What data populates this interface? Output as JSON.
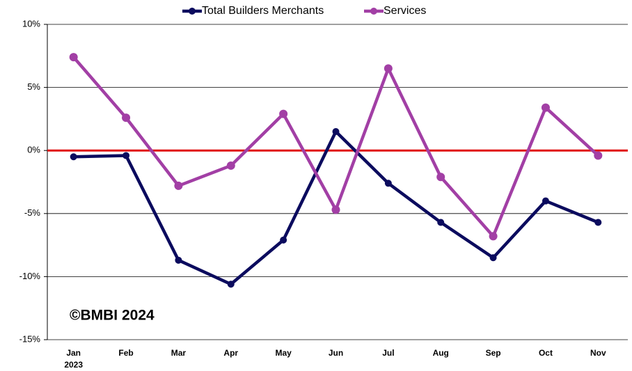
{
  "chart_data": {
    "type": "line",
    "categories": [
      "Jan",
      "Feb",
      "Mar",
      "Apr",
      "May",
      "Jun",
      "Jul",
      "Aug",
      "Sep",
      "Oct",
      "Nov"
    ],
    "year": "2023",
    "series": [
      {
        "name": "Total Builders Merchants",
        "color": "#0b0b5e",
        "values": [
          -0.5,
          -0.4,
          -8.7,
          -10.6,
          -7.1,
          1.5,
          -2.6,
          -5.7,
          -8.5,
          -4.0,
          -5.7
        ]
      },
      {
        "name": "Services",
        "color": "#a23fa5",
        "values": [
          7.4,
          2.6,
          -2.8,
          -1.2,
          2.9,
          -4.7,
          6.5,
          -2.1,
          -6.8,
          3.4,
          -0.4
        ]
      }
    ],
    "ylim": [
      -15,
      10
    ],
    "yticks": [
      {
        "value": -15,
        "label": "-15%"
      },
      {
        "value": -10,
        "label": "-10%"
      },
      {
        "value": -5,
        "label": "-5%"
      },
      {
        "value": 0,
        "label": "0%"
      },
      {
        "value": 5,
        "label": "5%"
      },
      {
        "value": 10,
        "label": "10%"
      }
    ],
    "grid": true,
    "zero_line_color": "#e01010",
    "legend": "top",
    "annotation": "©BMBI 2024"
  }
}
